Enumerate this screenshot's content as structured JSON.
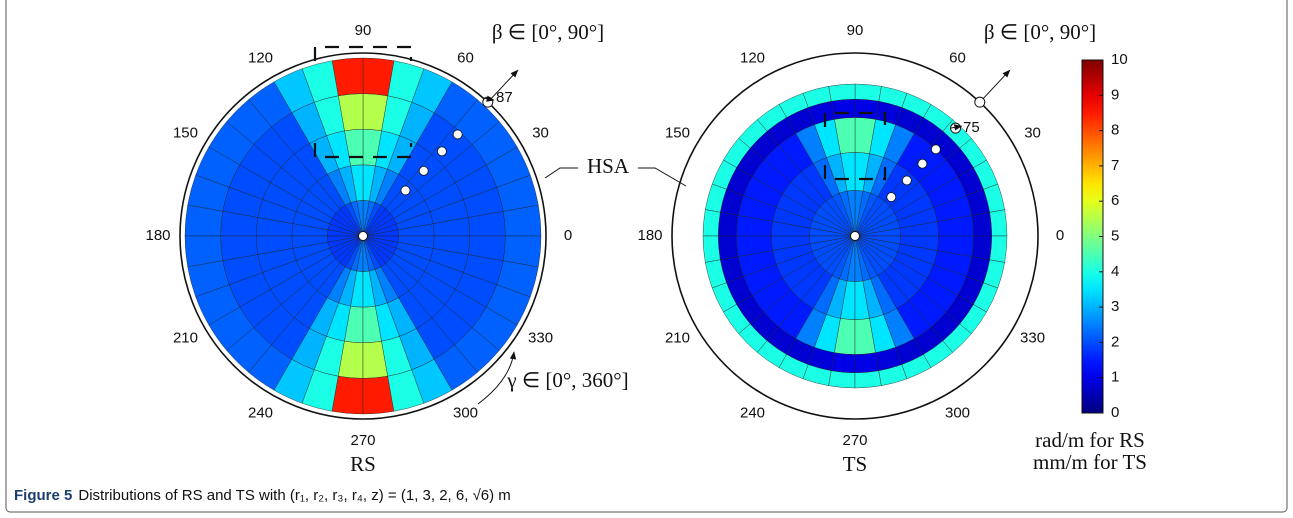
{
  "figure": {
    "label": "Figure 5",
    "caption": "Distributions of RS and TS with (r₁, r₂, r₃, r₄, z) = (1, 3, 2, 6, √6) m"
  },
  "chart_data": [
    {
      "type": "polar-heatmap",
      "title": "RS",
      "colorscale": "jet",
      "thetaticks": [
        0,
        30,
        60,
        90,
        120,
        150,
        180,
        210,
        240,
        270,
        300,
        330
      ],
      "values": [
        [
          1.8,
          1.8,
          1.8,
          1.8,
          1.8,
          1.8,
          2,
          2.3,
          2.5,
          2.5,
          2.3,
          2,
          1.8,
          1.8,
          1.8,
          1.8,
          1.8,
          1.8,
          1.8,
          1.8,
          1.8,
          1.8,
          1.8,
          1.8,
          2,
          2.3,
          2.5,
          2.5,
          2.3,
          2,
          1.8,
          1.8,
          1.8,
          1.8,
          1.8,
          1.8
        ],
        [
          2,
          2,
          2,
          2,
          2,
          2,
          2.5,
          3,
          3.5,
          3.5,
          3,
          2.5,
          2,
          2,
          2,
          2,
          2,
          2,
          2,
          2,
          2,
          2,
          2,
          2,
          2.5,
          3,
          3.5,
          3.5,
          3,
          2.5,
          2,
          2,
          2,
          2,
          2,
          2
        ],
        [
          2,
          2,
          2,
          2,
          2,
          2,
          3,
          3.5,
          4.5,
          4.5,
          3.5,
          3,
          2,
          2,
          2,
          2,
          2,
          2,
          2,
          2,
          2,
          2,
          2,
          2,
          3,
          3.5,
          4.5,
          4.5,
          3.5,
          3,
          2,
          2,
          2,
          2,
          2,
          2
        ],
        [
          2,
          2,
          2,
          2,
          2,
          2,
          3,
          4,
          5.5,
          5.5,
          4,
          3,
          2,
          2,
          2,
          2,
          2,
          2,
          2,
          2,
          2,
          2,
          2,
          2,
          3,
          4,
          5.5,
          5.5,
          4,
          3,
          2,
          2,
          2,
          2,
          2,
          2
        ],
        [
          2.2,
          2.2,
          2.2,
          2.2,
          2.2,
          2.2,
          3.2,
          4,
          8.5,
          8.5,
          4,
          3.2,
          2.2,
          2.2,
          2.2,
          2.2,
          2.2,
          2.2,
          2.2,
          2.2,
          2.2,
          2.2,
          2.2,
          2.2,
          3.2,
          4,
          8.5,
          8.5,
          4,
          3.2,
          2.2,
          2.2,
          2.2,
          2.2,
          2.2,
          2.2
        ]
      ],
      "annotations": {
        "range_beta": "β ∈ [0°, 90°]",
        "marker": "87",
        "range_gamma": "γ ∈ [0°, 360°]",
        "boundary": "HSA"
      }
    },
    {
      "type": "polar-heatmap",
      "title": "TS",
      "colorscale": "jet",
      "thetaticks": [
        0,
        30,
        60,
        90,
        120,
        150,
        180,
        210,
        240,
        270,
        300,
        330
      ],
      "values": [
        [
          2,
          2,
          2,
          2,
          2,
          2,
          2.1,
          2.3,
          2.5,
          2.5,
          2.3,
          2.1,
          2,
          2,
          2,
          2,
          2,
          2,
          2,
          2,
          2,
          2,
          2,
          2,
          2.1,
          2.3,
          2.5,
          2.5,
          2.3,
          2.1,
          2,
          2,
          2,
          2,
          2,
          2
        ],
        [
          1.8,
          1.8,
          1.8,
          1.8,
          1.8,
          1.8,
          2.3,
          3,
          3.5,
          3.5,
          3,
          2.3,
          1.8,
          1.8,
          1.8,
          1.8,
          1.8,
          1.8,
          1.8,
          1.8,
          1.8,
          1.8,
          1.8,
          1.8,
          2.3,
          3,
          3.5,
          3.5,
          3,
          2.3,
          1.8,
          1.8,
          1.8,
          1.8,
          1.8,
          1.8
        ],
        [
          1.5,
          1.5,
          1.5,
          1.5,
          1.5,
          1.5,
          2.5,
          3.5,
          4.5,
          4.5,
          3.5,
          2.5,
          1.5,
          1.5,
          1.5,
          1.5,
          1.5,
          1.5,
          1.5,
          1.5,
          1.5,
          1.5,
          1.5,
          1.5,
          2.5,
          3.5,
          4.5,
          4.5,
          3.5,
          2.5,
          1.5,
          1.5,
          1.5,
          1.5,
          1.5,
          1.5
        ],
        [
          0.8,
          0.8,
          0.8,
          0.8,
          0.8,
          0.8,
          0.8,
          0.9,
          1,
          1,
          0.9,
          0.8,
          0.8,
          0.8,
          0.8,
          0.8,
          0.8,
          0.8,
          0.8,
          0.8,
          0.8,
          0.8,
          0.8,
          0.8,
          0.8,
          0.9,
          1,
          1,
          0.9,
          0.8,
          0.8,
          0.8,
          0.8,
          0.8,
          0.8,
          0.8
        ],
        [
          4,
          4,
          4,
          4,
          4,
          4,
          4,
          4,
          4,
          4,
          4,
          4,
          4,
          4,
          4,
          4,
          4,
          4,
          4,
          4,
          4,
          4,
          4,
          4,
          4,
          4,
          4,
          4,
          4,
          4,
          4,
          4,
          4,
          4,
          4,
          4
        ]
      ],
      "annotations": {
        "range_beta": "β ∈ [0°, 90°]",
        "marker": "75"
      }
    }
  ],
  "colorbar": {
    "colorscale": "jet",
    "clim": [
      0,
      10
    ],
    "ticks": [
      0,
      1,
      2,
      3,
      4,
      5,
      6,
      7,
      8,
      9,
      10
    ],
    "label": [
      "rad/m for RS",
      "mm/m for TS"
    ]
  }
}
